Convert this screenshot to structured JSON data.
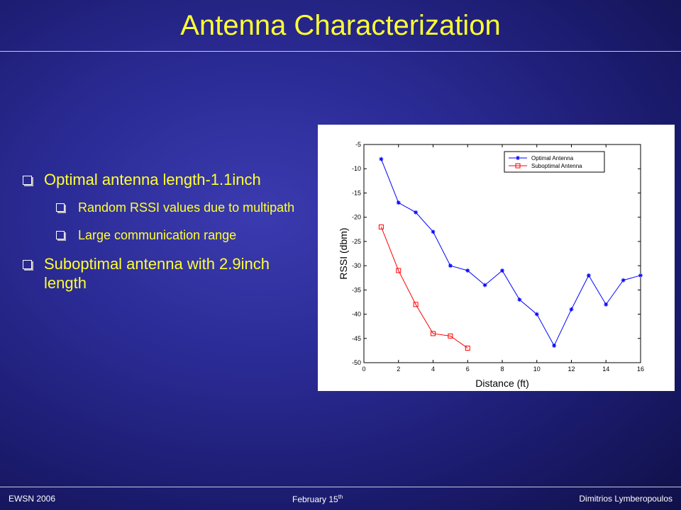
{
  "slide": {
    "title": "Antenna Characterization",
    "bullets": [
      {
        "level": 1,
        "text": "Optimal antenna length-1.1inch"
      },
      {
        "level": 2,
        "text": "Random RSSI values due to multipath"
      },
      {
        "level": 2,
        "text": "Large communication range"
      },
      {
        "level": 1,
        "text": "Suboptimal antenna with 2.9inch length"
      }
    ],
    "colors": {
      "title": "#ffff33",
      "background": "#2b2b96",
      "text": "#ffff33"
    }
  },
  "footer": {
    "left": "EWSN 2006",
    "center_main": "February 15",
    "center_sup": "th",
    "right": "Dimitrios Lymberopoulos"
  },
  "chart_data": {
    "type": "line",
    "xlabel": "Distance (ft)",
    "ylabel": "RSSI (dbm)",
    "xlim": [
      0,
      16
    ],
    "ylim": [
      -50,
      -5
    ],
    "xticks": [
      0,
      2,
      4,
      6,
      8,
      10,
      12,
      14,
      16
    ],
    "yticks": [
      -5,
      -10,
      -15,
      -20,
      -25,
      -30,
      -35,
      -40,
      -45,
      -50
    ],
    "grid": false,
    "legend_position": "top-right",
    "series": [
      {
        "name": "Optimal Antenna",
        "color": "#0000ff",
        "marker": "star",
        "x": [
          1,
          2,
          3,
          4,
          5,
          6,
          7,
          8,
          9,
          10,
          11,
          12,
          13,
          14,
          15,
          16
        ],
        "y": [
          -8,
          -17,
          -19,
          -23,
          -30,
          -31,
          -34,
          -31,
          -37,
          -40,
          -46.5,
          -39,
          -32,
          -38,
          -33,
          -32
        ]
      },
      {
        "name": "Suboptimal Antenna",
        "color": "#ff0000",
        "marker": "square",
        "x": [
          1,
          2,
          3,
          4,
          5,
          6
        ],
        "y": [
          -22,
          -31,
          -38,
          -44,
          -44.5,
          -47
        ]
      }
    ]
  }
}
